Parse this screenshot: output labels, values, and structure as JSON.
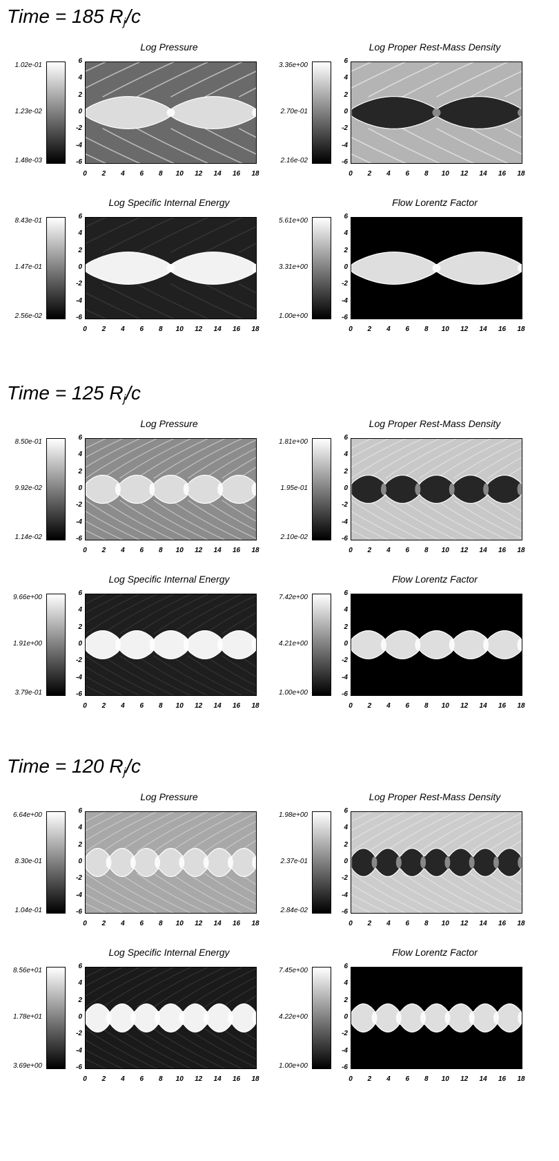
{
  "figure": {
    "axes": {
      "y_ticks": [
        "6",
        "4",
        "2",
        "0",
        "-2",
        "-4",
        "-6"
      ],
      "x_ticks": [
        "0",
        "2",
        "4",
        "6",
        "8",
        "10",
        "12",
        "14",
        "16",
        "18"
      ]
    },
    "blocks": [
      {
        "title": "Time = 185",
        "unit_main": "R",
        "unit_sub": "j",
        "unit_tail": "/c",
        "panels": [
          {
            "title": "Log Pressure",
            "cbar": [
              "1.02e-01",
              "1.23e-02",
              "1.48e-03"
            ],
            "knots": 2,
            "style": "pressure",
            "bg": "#6a6a6a"
          },
          {
            "title": "Log Proper Rest-Mass Density",
            "cbar": [
              "3.36e+00",
              "2.70e-01",
              "2.16e-02"
            ],
            "knots": 2,
            "style": "density",
            "bg": "#b4b4b4"
          },
          {
            "title": "Log Specific Internal Energy",
            "cbar": [
              "8.43e-01",
              "1.47e-01",
              "2.56e-02"
            ],
            "knots": 2,
            "style": "energy",
            "bg": "#202020"
          },
          {
            "title": "Flow Lorentz Factor",
            "cbar": [
              "5.61e+00",
              "3.31e+00",
              "1.00e+00"
            ],
            "knots": 2,
            "style": "lorentz",
            "bg": "#000000"
          }
        ]
      },
      {
        "title": "Time = 125",
        "unit_main": "R",
        "unit_sub": "j",
        "unit_tail": "/c",
        "panels": [
          {
            "title": "Log Pressure",
            "cbar": [
              "8.50e-01",
              "9.92e-02",
              "1.14e-02"
            ],
            "knots": 5,
            "style": "pressure",
            "bg": "#8c8c8c"
          },
          {
            "title": "Log Proper Rest-Mass Density",
            "cbar": [
              "1.81e+00",
              "1.95e-01",
              "2.10e-02"
            ],
            "knots": 5,
            "style": "density",
            "bg": "#c8c8c8"
          },
          {
            "title": "Log Specific Internal Energy",
            "cbar": [
              "9.66e+00",
              "1.91e+00",
              "3.79e-01"
            ],
            "knots": 5,
            "style": "energy",
            "bg": "#1e1e1e"
          },
          {
            "title": "Flow Lorentz Factor",
            "cbar": [
              "7.42e+00",
              "4.21e+00",
              "1.00e+00"
            ],
            "knots": 5,
            "style": "lorentz",
            "bg": "#000000"
          }
        ]
      },
      {
        "title": "Time = 120",
        "unit_main": "R",
        "unit_sub": "j",
        "unit_tail": "/c",
        "panels": [
          {
            "title": "Log Pressure",
            "cbar": [
              "6.64e+00",
              "8.30e-01",
              "1.04e-01"
            ],
            "knots": 7,
            "style": "pressure",
            "bg": "#a8a8a8"
          },
          {
            "title": "Log Proper Rest-Mass Density",
            "cbar": [
              "1.98e+00",
              "2.37e-01",
              "2.84e-02"
            ],
            "knots": 7,
            "style": "density",
            "bg": "#cccccc"
          },
          {
            "title": "Log Specific Internal Energy",
            "cbar": [
              "8.56e+01",
              "1.78e+01",
              "3.69e+00"
            ],
            "knots": 7,
            "style": "energy",
            "bg": "#1a1a1a"
          },
          {
            "title": "Flow Lorentz Factor",
            "cbar": [
              "7.45e+00",
              "4.22e+00",
              "1.00e+00"
            ],
            "knots": 7,
            "style": "lorentz",
            "bg": "#000000"
          }
        ]
      }
    ]
  }
}
